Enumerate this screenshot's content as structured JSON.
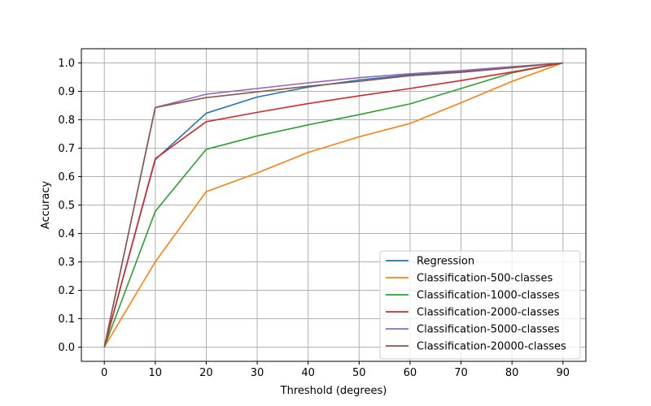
{
  "chart_data": {
    "type": "line",
    "title": "",
    "xlabel": "Threshold (degrees)",
    "ylabel": "Accuracy",
    "x": [
      0,
      10,
      20,
      30,
      40,
      50,
      60,
      70,
      80,
      90
    ],
    "xlim": [
      -4.5,
      94.5
    ],
    "ylim": [
      -0.05,
      1.05
    ],
    "xticks": [
      0,
      10,
      20,
      30,
      40,
      50,
      60,
      70,
      80,
      90
    ],
    "yticks": [
      0.0,
      0.1,
      0.2,
      0.3,
      0.4,
      0.5,
      0.6,
      0.7,
      0.8,
      0.9,
      1.0
    ],
    "grid": true,
    "legend_position": "bottom-right",
    "series": [
      {
        "name": "Regression",
        "color": "#1f77b4",
        "values": [
          0.0,
          0.66,
          0.823,
          0.88,
          0.915,
          0.94,
          0.958,
          0.97,
          0.985,
          1.0
        ]
      },
      {
        "name": "Classification-500-classes",
        "color": "#ff7f0e",
        "values": [
          0.0,
          0.3,
          0.547,
          0.613,
          0.685,
          0.74,
          0.787,
          0.86,
          0.935,
          1.0
        ]
      },
      {
        "name": "Classification-1000-classes",
        "color": "#2ca02c",
        "values": [
          0.0,
          0.478,
          0.696,
          0.743,
          0.782,
          0.818,
          0.856,
          0.91,
          0.965,
          1.0
        ]
      },
      {
        "name": "Classification-2000-classes",
        "color": "#d62728",
        "values": [
          0.0,
          0.663,
          0.793,
          0.826,
          0.857,
          0.884,
          0.91,
          0.938,
          0.968,
          1.0
        ]
      },
      {
        "name": "Classification-5000-classes",
        "color": "#9467bd",
        "values": [
          0.0,
          0.843,
          0.89,
          0.91,
          0.93,
          0.948,
          0.962,
          0.973,
          0.987,
          1.0
        ]
      },
      {
        "name": "Classification-20000-classes",
        "color": "#8c564b",
        "values": [
          0.0,
          0.843,
          0.878,
          0.898,
          0.918,
          0.935,
          0.955,
          0.967,
          0.983,
          1.0
        ]
      }
    ]
  }
}
